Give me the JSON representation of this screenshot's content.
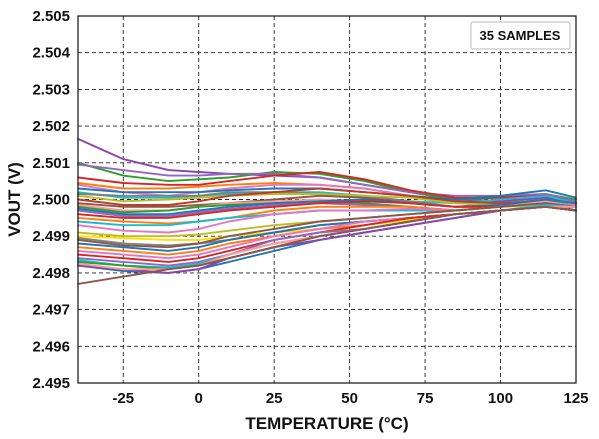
{
  "chart_data": {
    "type": "line",
    "xlabel": "TEMPERATURE (°C)",
    "ylabel": "VOUT (V)",
    "xlim": [
      -40,
      125
    ],
    "ylim": [
      2.495,
      2.505
    ],
    "x_ticks": [
      -25,
      0,
      25,
      50,
      75,
      100,
      125
    ],
    "y_ticks": [
      2.495,
      2.496,
      2.497,
      2.498,
      2.499,
      2.5,
      2.501,
      2.502,
      2.503,
      2.504,
      2.505
    ],
    "x_tick_labels": [
      "-25",
      "0",
      "25",
      "50",
      "75",
      "100",
      "125"
    ],
    "y_tick_labels": [
      "2.495",
      "2.496",
      "2.497",
      "2.498",
      "2.499",
      "2.500",
      "2.501",
      "2.502",
      "2.503",
      "2.504",
      "2.505"
    ],
    "grid": true,
    "legend": {
      "text": "35 SAMPLES",
      "position": "top-right"
    },
    "x": [
      -40,
      -25,
      -10,
      0,
      10,
      25,
      40,
      55,
      70,
      85,
      100,
      115,
      125
    ],
    "series": [
      {
        "color": "#8e44ad",
        "values": [
          2.50165,
          2.5011,
          2.5008,
          2.50075,
          2.5007,
          2.50065,
          2.5006,
          2.5004,
          2.5002,
          2.5,
          2.49995,
          2.50005,
          2.4999
        ]
      },
      {
        "color": "#2ca02c",
        "values": [
          2.501,
          2.50065,
          2.5005,
          2.50055,
          2.5006,
          2.50075,
          2.5007,
          2.5005,
          2.5002,
          2.5,
          2.50005,
          2.50015,
          2.5
        ]
      },
      {
        "color": "#9467bd",
        "values": [
          2.50095,
          2.5008,
          2.50065,
          2.50065,
          2.5007,
          2.5007,
          2.5006,
          2.5004,
          2.5002,
          2.5001,
          2.5001,
          2.50015,
          2.49995
        ]
      },
      {
        "color": "#d62728",
        "values": [
          2.5006,
          2.50045,
          2.5004,
          2.5004,
          2.5005,
          2.50065,
          2.50075,
          2.50055,
          2.50025,
          2.50005,
          2.50005,
          2.5001,
          2.4999
        ]
      },
      {
        "color": "#ff7f0e",
        "values": [
          2.50045,
          2.5003,
          2.5003,
          2.50035,
          2.5004,
          2.50045,
          2.5004,
          2.5003,
          2.5001,
          2.4999,
          2.49985,
          2.49995,
          2.4998
        ]
      },
      {
        "color": "#e377c2",
        "values": [
          2.5004,
          2.5002,
          2.5001,
          2.5002,
          2.5003,
          2.5004,
          2.5004,
          2.5003,
          2.5001,
          2.49995,
          2.4999,
          2.49995,
          2.49985
        ]
      },
      {
        "color": "#1f77b4",
        "values": [
          2.5003,
          2.5002,
          2.5002,
          2.5002,
          2.50025,
          2.5003,
          2.5003,
          2.5002,
          2.5001,
          2.5,
          2.5001,
          2.50025,
          2.50005
        ]
      },
      {
        "color": "#17becf",
        "values": [
          2.5002,
          2.50005,
          2.50005,
          2.5001,
          2.50015,
          2.5002,
          2.5002,
          2.5001,
          2.49995,
          2.4999,
          2.5,
          2.5001,
          2.4999
        ]
      },
      {
        "color": "#7f7f7f",
        "values": [
          2.50015,
          2.5001,
          2.5001,
          2.5001,
          2.5002,
          2.5002,
          2.50015,
          2.5001,
          2.49995,
          2.4998,
          2.4999,
          2.5,
          2.4998
        ]
      },
      {
        "color": "#bcbd22",
        "values": [
          2.5001,
          2.49995,
          2.5,
          2.50005,
          2.5001,
          2.50015,
          2.50015,
          2.5001,
          2.50005,
          2.4999,
          2.49985,
          2.4999,
          2.4997
        ]
      },
      {
        "color": "#c0392b",
        "values": [
          2.5,
          2.49985,
          2.49985,
          2.49995,
          2.5001,
          2.5002,
          2.5003,
          2.5002,
          2.5001,
          2.49995,
          2.4999,
          2.49995,
          2.4998
        ]
      },
      {
        "color": "#8c564b",
        "values": [
          2.4999,
          2.4998,
          2.4998,
          2.49985,
          2.4999,
          2.5,
          2.5001,
          2.50005,
          2.4999,
          2.4998,
          2.4998,
          2.4999,
          2.4997
        ]
      },
      {
        "color": "#ff9896",
        "values": [
          2.49985,
          2.4997,
          2.4997,
          2.4998,
          2.4999,
          2.49995,
          2.5,
          2.49995,
          2.4999,
          2.4998,
          2.49985,
          2.49995,
          2.4998
        ]
      },
      {
        "color": "#2ca02c",
        "values": [
          2.4998,
          2.49965,
          2.4997,
          2.4998,
          2.49985,
          2.4999,
          2.49995,
          2.4999,
          2.4998,
          2.4997,
          2.4998,
          2.4999,
          2.4998
        ]
      },
      {
        "color": "#1f77b4",
        "values": [
          2.49975,
          2.4996,
          2.4996,
          2.4997,
          2.4998,
          2.4999,
          2.49995,
          2.5,
          2.4999,
          2.4998,
          2.49985,
          2.5,
          2.4999
        ]
      },
      {
        "color": "#9467bd",
        "values": [
          2.4997,
          2.49955,
          2.49955,
          2.49965,
          2.49975,
          2.49985,
          2.4999,
          2.49985,
          2.4998,
          2.4997,
          2.4998,
          2.4999,
          2.4998
        ]
      },
      {
        "color": "#d62728",
        "values": [
          2.4996,
          2.4995,
          2.4995,
          2.4996,
          2.4997,
          2.4998,
          2.4999,
          2.49995,
          2.4999,
          2.4998,
          2.4998,
          2.4999,
          2.4997
        ]
      },
      {
        "color": "#ff7f0e",
        "values": [
          2.4995,
          2.4994,
          2.49935,
          2.4994,
          2.4995,
          2.4997,
          2.4998,
          2.4998,
          2.4998,
          2.4997,
          2.4998,
          2.4999,
          2.4998
        ]
      },
      {
        "color": "#17becf",
        "values": [
          2.4994,
          2.4993,
          2.4993,
          2.4994,
          2.4995,
          2.4996,
          2.4997,
          2.4997,
          2.4997,
          2.4997,
          2.4998,
          2.4999,
          2.4998
        ]
      },
      {
        "color": "#e377c2",
        "values": [
          2.4993,
          2.49915,
          2.4991,
          2.4992,
          2.4994,
          2.4996,
          2.4997,
          2.4997,
          2.49975,
          2.4997,
          2.4998,
          2.4999,
          2.4998
        ]
      },
      {
        "color": "#bcbd22",
        "values": [
          2.4991,
          2.499,
          2.499,
          2.49905,
          2.49915,
          2.4993,
          2.4994,
          2.4995,
          2.4996,
          2.4997,
          2.4998,
          2.49985,
          2.4997
        ]
      },
      {
        "color": "#ffe000",
        "values": [
          2.499,
          2.49895,
          2.4989,
          2.4989,
          2.499,
          2.4991,
          2.4992,
          2.4993,
          2.49945,
          2.4996,
          2.4997,
          2.4998,
          2.4997
        ]
      },
      {
        "color": "#7f7f7f",
        "values": [
          2.49895,
          2.4988,
          2.49875,
          2.4988,
          2.4989,
          2.4991,
          2.4993,
          2.4994,
          2.4995,
          2.4996,
          2.4997,
          2.4998,
          2.4997
        ]
      },
      {
        "color": "#8c564b",
        "values": [
          2.4989,
          2.49875,
          2.4987,
          2.4988,
          2.499,
          2.4992,
          2.4994,
          2.4995,
          2.4996,
          2.4997,
          2.4998,
          2.4999,
          2.4998
        ]
      },
      {
        "color": "#1f77b4",
        "values": [
          2.4988,
          2.4987,
          2.4986,
          2.4987,
          2.4989,
          2.4991,
          2.4993,
          2.4994,
          2.4995,
          2.4996,
          2.4997,
          2.4998,
          2.4998
        ]
      },
      {
        "color": "#ff7f0e",
        "values": [
          2.4987,
          2.4986,
          2.4985,
          2.4986,
          2.4988,
          2.499,
          2.4992,
          2.4993,
          2.4995,
          2.4996,
          2.4997,
          2.4998,
          2.4998
        ]
      },
      {
        "color": "#e377c2",
        "values": [
          2.4986,
          2.4985,
          2.4984,
          2.4985,
          2.4987,
          2.499,
          2.4992,
          2.4994,
          2.4995,
          2.4996,
          2.4997,
          2.4998,
          2.4997
        ]
      },
      {
        "color": "#d62728",
        "values": [
          2.4985,
          2.4984,
          2.4983,
          2.4984,
          2.4986,
          2.4989,
          2.4991,
          2.4993,
          2.4995,
          2.4996,
          2.4997,
          2.4998,
          2.4997
        ]
      },
      {
        "color": "#9467bd",
        "values": [
          2.4984,
          2.4983,
          2.4982,
          2.4983,
          2.4985,
          2.4989,
          2.4991,
          2.4992,
          2.4994,
          2.4996,
          2.4997,
          2.4998,
          2.4998
        ]
      },
      {
        "color": "#17becf",
        "values": [
          2.49835,
          2.4982,
          2.49815,
          2.49825,
          2.4985,
          2.4988,
          2.499,
          2.4992,
          2.4994,
          2.4996,
          2.4997,
          2.49985,
          2.4998
        ]
      },
      {
        "color": "#2ca02c",
        "values": [
          2.4983,
          2.4982,
          2.4981,
          2.4982,
          2.4984,
          2.4987,
          2.499,
          2.4992,
          2.4994,
          2.4996,
          2.4997,
          2.4998,
          2.4997
        ]
      },
      {
        "color": "#1f77b4",
        "values": [
          2.4982,
          2.49805,
          2.498,
          2.4981,
          2.4983,
          2.4986,
          2.4989,
          2.4991,
          2.4993,
          2.4995,
          2.4997,
          2.4998,
          2.4997
        ]
      },
      {
        "color": "#8e44ad",
        "values": [
          2.4982,
          2.4981,
          2.498,
          2.4981,
          2.4984,
          2.4987,
          2.4989,
          2.4991,
          2.4993,
          2.4995,
          2.4997,
          2.4998,
          2.4997
        ]
      },
      {
        "color": "#ff9896",
        "values": [
          2.49825,
          2.4981,
          2.4981,
          2.4982,
          2.4985,
          2.4988,
          2.499,
          2.4992,
          2.4994,
          2.4996,
          2.4997,
          2.4998,
          2.4998
        ]
      },
      {
        "color": "#8c564b",
        "values": [
          2.4977,
          2.4979,
          2.4981,
          2.4982,
          2.4984,
          2.4987,
          2.499,
          2.4992,
          2.4994,
          2.4996,
          2.4997,
          2.4998,
          2.4997
        ]
      }
    ]
  }
}
